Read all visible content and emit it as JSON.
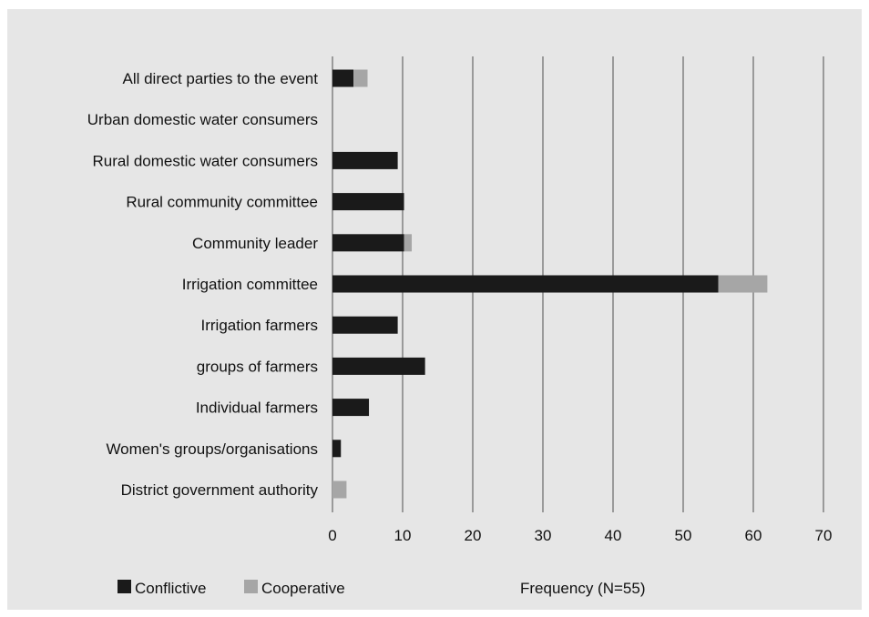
{
  "chart_data": {
    "type": "bar",
    "orientation": "horizontal",
    "stacked": true,
    "categories": [
      "All direct parties to the event",
      "Urban domestic water consumers",
      "Rural domestic water consumers",
      "Rural community committee",
      "Community leader",
      "Irrigation committee",
      "Irrigation farmers",
      "groups of farmers",
      "Individual farmers",
      "Women's groups/organisations",
      "District government authority"
    ],
    "series": [
      {
        "name": "Conflictive",
        "color": "#1a1a1a",
        "values": [
          3,
          0,
          9.3,
          10.2,
          10.2,
          55,
          9.3,
          13.2,
          5.2,
          1.2,
          0
        ]
      },
      {
        "name": "Cooperative",
        "color": "#a6a6a6",
        "values": [
          2,
          0,
          0,
          0,
          1.1,
          7,
          0,
          0,
          0,
          0,
          2
        ]
      }
    ],
    "xlim": [
      0,
      70
    ],
    "xticks": [
      0,
      10,
      20,
      30,
      40,
      50,
      60,
      70
    ],
    "xlabel": "Frequency (N=55)",
    "legend_position": "bottom-left",
    "grid": "vertical"
  }
}
